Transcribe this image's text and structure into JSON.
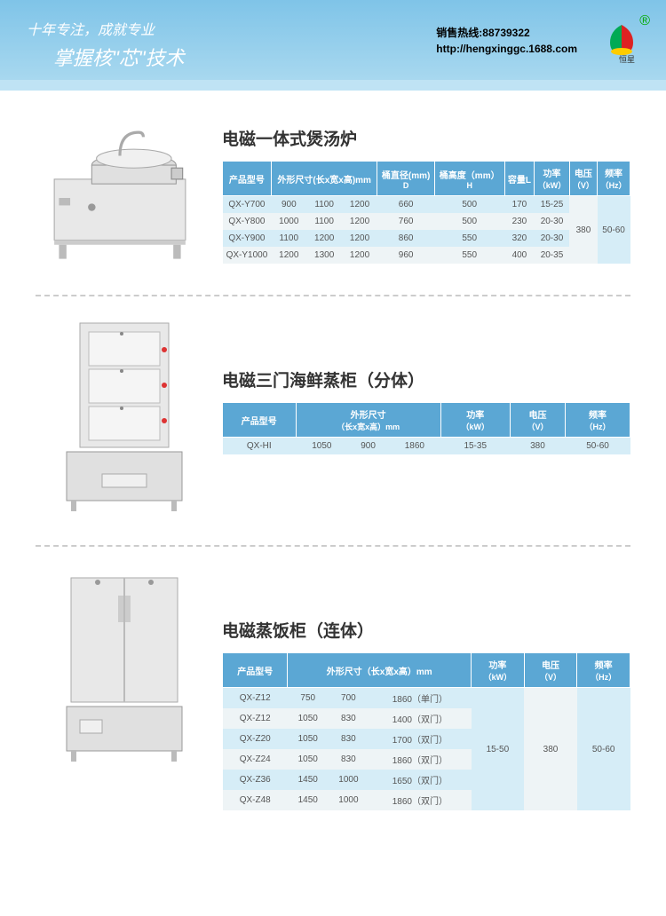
{
  "header": {
    "slogan1": "十年专注，成就专业",
    "slogan2": "掌握核\"芯\"技术",
    "hotline": "销售热线:88739322",
    "url": "http://hengxinggc.1688.com",
    "logo_text": "恒星",
    "reg_mark": "®"
  },
  "colors": {
    "header_top": "#7fc4e8",
    "header_bot": "#a8d8ef",
    "th_bg": "#5ba7d4",
    "row_odd": "#d6edf7",
    "row_even": "#eef4f6"
  },
  "product1": {
    "title": "电磁一体式煲汤炉",
    "headers": {
      "model": "产品型号",
      "dims": "外形尺寸(长x宽x高)mm",
      "diameter": "桶直径(mm)\nD",
      "height": "桶高度（mm）\nH",
      "capacity": "容量L",
      "power": "功率\n（kW）",
      "voltage": "电压\n（V）",
      "freq": "频率\n（Hz）"
    },
    "rows": [
      {
        "model": "QX-Y700",
        "l": "900",
        "w": "1100",
        "h": "1200",
        "d": "660",
        "ht": "500",
        "cap": "170",
        "pw": "15-25"
      },
      {
        "model": "QX-Y800",
        "l": "1000",
        "w": "1100",
        "h": "1200",
        "d": "760",
        "ht": "500",
        "cap": "230",
        "pw": "20-30"
      },
      {
        "model": "QX-Y900",
        "l": "1100",
        "w": "1200",
        "h": "1200",
        "d": "860",
        "ht": "550",
        "cap": "320",
        "pw": "20-30"
      },
      {
        "model": "QX-Y1000",
        "l": "1200",
        "w": "1300",
        "h": "1200",
        "d": "960",
        "ht": "550",
        "cap": "400",
        "pw": "20-35"
      }
    ],
    "voltage": "380",
    "freq": "50-60"
  },
  "product2": {
    "title": "电磁三门海鲜蒸柜（分体）",
    "headers": {
      "model": "产品型号",
      "dims": "外形尺寸\n（长x宽x高）mm",
      "power": "功率\n（kW）",
      "voltage": "电压\n（V）",
      "freq": "频率\n（Hz）"
    },
    "rows": [
      {
        "model": "QX-HI",
        "l": "1050",
        "w": "900",
        "h": "1860",
        "pw": "15-35",
        "v": "380",
        "f": "50-60"
      }
    ]
  },
  "product3": {
    "title": "电磁蒸饭柜（连体）",
    "headers": {
      "model": "产品型号",
      "dims": "外形尺寸（长x宽x高）mm",
      "power": "功率\n（kW）",
      "voltage": "电压\n（V）",
      "freq": "频率\n（Hz）"
    },
    "rows": [
      {
        "model": "QX-Z12",
        "l": "750",
        "w": "700",
        "h": "1860（单门）"
      },
      {
        "model": "QX-Z12",
        "l": "1050",
        "w": "830",
        "h": "1400（双门）"
      },
      {
        "model": "QX-Z20",
        "l": "1050",
        "w": "830",
        "h": "1700（双门）"
      },
      {
        "model": "QX-Z24",
        "l": "1050",
        "w": "830",
        "h": "1860（双门）"
      },
      {
        "model": "QX-Z36",
        "l": "1450",
        "w": "1000",
        "h": "1650（双门）"
      },
      {
        "model": "QX-Z48",
        "l": "1450",
        "w": "1000",
        "h": "1860（双门）"
      }
    ],
    "power": "15-50",
    "voltage": "380",
    "freq": "50-60"
  }
}
